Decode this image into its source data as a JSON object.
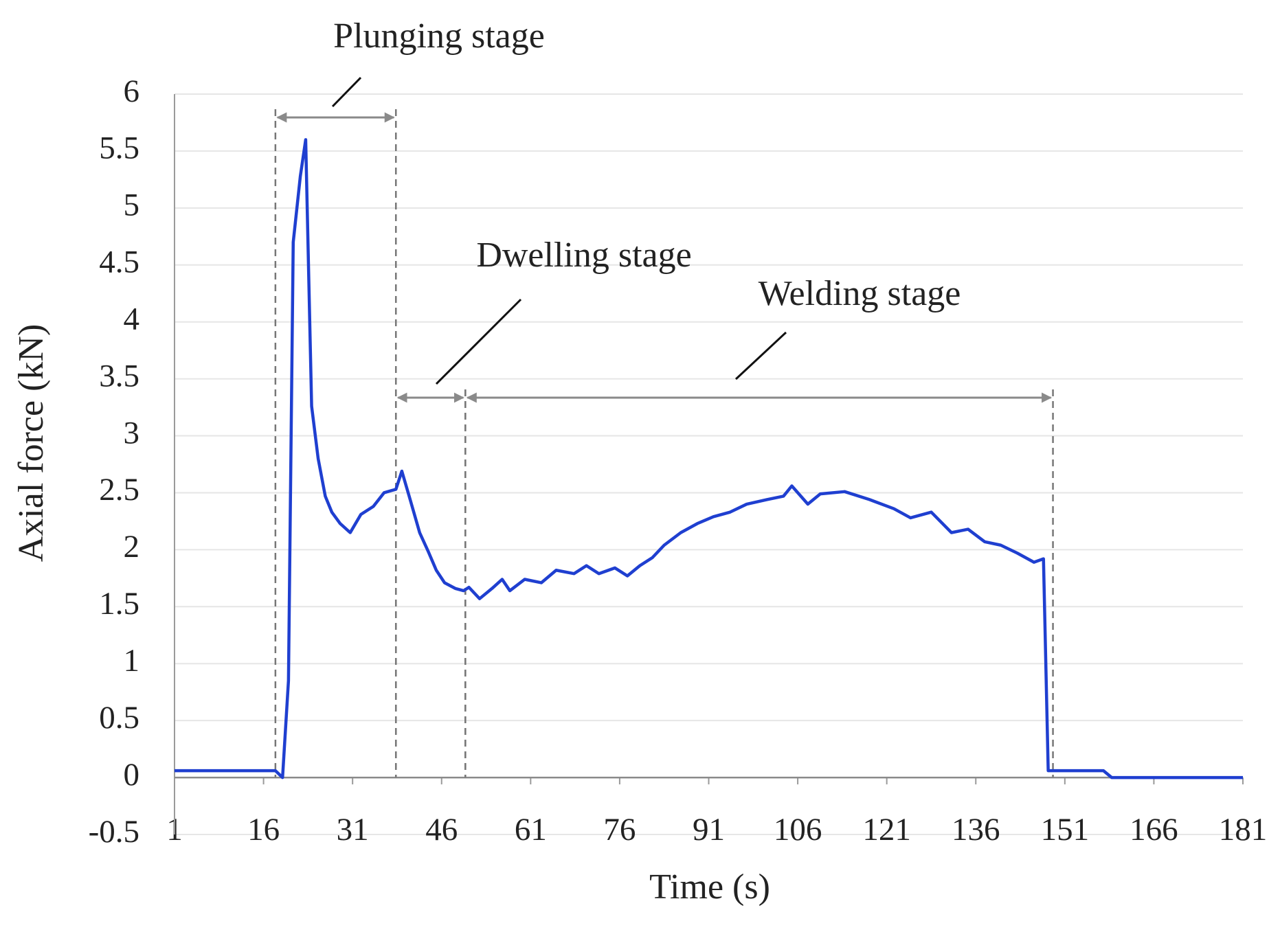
{
  "chart_data": {
    "type": "line",
    "x_label": "Time (s)",
    "y_label": "Axial force (kN)",
    "xlim": [
      1,
      181
    ],
    "xticks": [
      1,
      16,
      31,
      46,
      61,
      76,
      91,
      106,
      121,
      136,
      151,
      166,
      181
    ],
    "ylim": [
      -0.5,
      6
    ],
    "yticks": [
      -0.5,
      0,
      0.5,
      1,
      1.5,
      2,
      2.5,
      3,
      3.5,
      4,
      4.5,
      5,
      5.5,
      6
    ],
    "grid": true,
    "series": [
      {
        "name": "Axial force",
        "color": "#1f3fd0",
        "x": [
          1,
          18,
          19.2,
          20.2,
          21,
          22.2,
          23.1,
          24.1,
          25.2,
          26.4,
          27.5,
          28.9,
          30.6,
          32.4,
          34.5,
          36.3,
          37.6,
          38.3,
          39.3,
          40.7,
          42.3,
          43.7,
          45.1,
          46.5,
          48.3,
          49.7,
          50.6,
          52.4,
          54.5,
          56.2,
          57.5,
          60,
          62.8,
          65.3,
          68.3,
          70.4,
          72.5,
          75.2,
          77.3,
          79.4,
          81.5,
          83.5,
          86.3,
          89.1,
          91.8,
          94.6,
          97.4,
          100.8,
          103.6,
          105,
          107.7,
          109.8,
          113.9,
          118.1,
          122.2,
          125,
          128.5,
          131.9,
          134.7,
          137.5,
          140.2,
          143,
          145.8,
          147.4,
          148.2,
          157.5,
          158.9,
          181
        ],
        "values": [
          0.06,
          0.06,
          0,
          0.85,
          4.7,
          5.28,
          5.6,
          3.26,
          2.8,
          2.47,
          2.33,
          2.23,
          2.15,
          2.31,
          2.38,
          2.5,
          2.52,
          2.53,
          2.69,
          2.44,
          2.15,
          1.99,
          1.82,
          1.71,
          1.66,
          1.64,
          1.67,
          1.57,
          1.66,
          1.74,
          1.64,
          1.74,
          1.71,
          1.82,
          1.79,
          1.86,
          1.79,
          1.84,
          1.77,
          1.86,
          1.93,
          2.04,
          2.15,
          2.23,
          2.29,
          2.33,
          2.4,
          2.44,
          2.47,
          2.56,
          2.4,
          2.49,
          2.51,
          2.44,
          2.36,
          2.28,
          2.33,
          2.15,
          2.18,
          2.07,
          2.04,
          1.97,
          1.89,
          1.92,
          0.06,
          0.06,
          0,
          0
        ]
      }
    ],
    "stages": [
      {
        "name": "Plunging stage",
        "start": 18,
        "end": 38.3
      },
      {
        "name": "Dwelling stage",
        "start": 38.3,
        "end": 50
      },
      {
        "name": "Welding stage",
        "start": 50,
        "end": 149
      }
    ]
  }
}
